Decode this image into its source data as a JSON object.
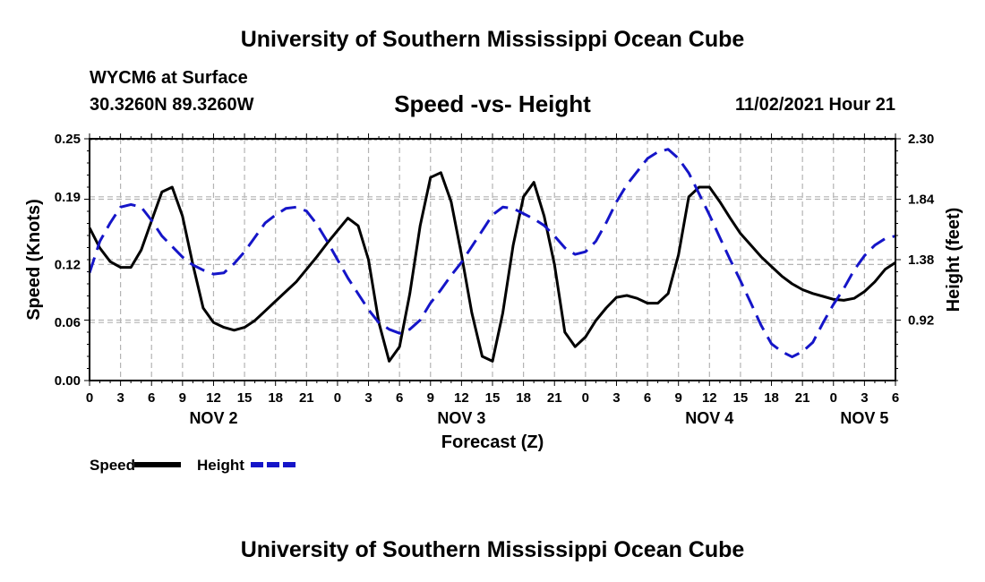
{
  "header": {
    "title": "University of Southern Mississippi Ocean Cube",
    "station": "WYCM6 at Surface",
    "coords": "30.3260N  89.3260W",
    "subtitle": "Speed -vs- Height",
    "datetime": "11/02/2021 Hour 21",
    "footer_title": "University of Southern Mississippi Ocean Cube"
  },
  "colors": {
    "speed": "#000000",
    "height": "#1515c8",
    "grid": "#b4b4b4"
  },
  "chart_data": {
    "type": "line",
    "title": "Speed -vs- Height",
    "xlabel": "Forecast (Z)",
    "ylabel": "Speed (Knots)",
    "y2label": "Height (feet)",
    "x_range_hours": [
      0,
      78
    ],
    "ylim": [
      0,
      0.25
    ],
    "y2lim": [
      0.46,
      2.3
    ],
    "yticks": [
      "0.00",
      "0.06",
      "0.12",
      "0.19",
      "0.25"
    ],
    "y2ticks": [
      "0.92",
      "1.38",
      "1.84",
      "2.30"
    ],
    "xtick_labels": [
      "0",
      "3",
      "6",
      "9",
      "12",
      "15",
      "18",
      "21",
      "0",
      "3",
      "6",
      "9",
      "12",
      "15",
      "18",
      "21",
      "0",
      "3",
      "6",
      "9",
      "12",
      "15",
      "18",
      "21",
      "0",
      "3",
      "6"
    ],
    "day_labels": [
      {
        "label": "NOV 2",
        "hour": 12
      },
      {
        "label": "NOV 3",
        "hour": 36
      },
      {
        "label": "NOV 4",
        "hour": 60
      },
      {
        "label": "NOV 5",
        "hour": 75
      }
    ],
    "legend": [
      {
        "name": "Speed",
        "style": "solid"
      },
      {
        "name": "Height",
        "style": "dashed"
      }
    ],
    "series": [
      {
        "name": "Speed",
        "axis": "left",
        "x": [
          0,
          1,
          2,
          3,
          4,
          5,
          6,
          7,
          8,
          9,
          10,
          11,
          12,
          13,
          14,
          15,
          16,
          17,
          18,
          19,
          20,
          21,
          22,
          23,
          24,
          25,
          26,
          27,
          28,
          29,
          30,
          31,
          32,
          33,
          34,
          35,
          36,
          37,
          38,
          39,
          40,
          41,
          42,
          43,
          44,
          45,
          46,
          47,
          48,
          49,
          50,
          51,
          52,
          53,
          54,
          55,
          56,
          57,
          58,
          59,
          60,
          61,
          62,
          63,
          64,
          65,
          66,
          67,
          68,
          69,
          70,
          71,
          72,
          73,
          74,
          75,
          76,
          77,
          78
        ],
        "values": [
          0.158,
          0.137,
          0.123,
          0.117,
          0.117,
          0.135,
          0.165,
          0.195,
          0.2,
          0.17,
          0.12,
          0.075,
          0.06,
          0.055,
          0.052,
          0.055,
          0.062,
          0.072,
          0.082,
          0.092,
          0.102,
          0.115,
          0.128,
          0.142,
          0.155,
          0.168,
          0.16,
          0.125,
          0.06,
          0.02,
          0.035,
          0.09,
          0.16,
          0.21,
          0.215,
          0.185,
          0.13,
          0.07,
          0.025,
          0.02,
          0.07,
          0.14,
          0.19,
          0.205,
          0.17,
          0.12,
          0.05,
          0.035,
          0.045,
          0.062,
          0.075,
          0.086,
          0.088,
          0.085,
          0.08,
          0.08,
          0.09,
          0.13,
          0.19,
          0.2,
          0.2,
          0.185,
          0.168,
          0.152,
          0.14,
          0.128,
          0.118,
          0.108,
          0.1,
          0.094,
          0.09,
          0.087,
          0.084,
          0.083,
          0.085,
          0.092,
          0.102,
          0.115,
          0.122
        ]
      },
      {
        "name": "Height",
        "axis": "right",
        "x": [
          0,
          1,
          2,
          3,
          4,
          5,
          6,
          7,
          8,
          9,
          10,
          11,
          12,
          13,
          14,
          15,
          16,
          17,
          18,
          19,
          20,
          21,
          22,
          23,
          24,
          25,
          26,
          27,
          28,
          29,
          30,
          31,
          32,
          33,
          34,
          35,
          36,
          37,
          38,
          39,
          40,
          41,
          42,
          43,
          44,
          45,
          46,
          47,
          48,
          49,
          50,
          51,
          52,
          53,
          54,
          55,
          56,
          57,
          58,
          59,
          60,
          61,
          62,
          63,
          64,
          65,
          66,
          67,
          68,
          69,
          70,
          71,
          72,
          73,
          74,
          75,
          76,
          77,
          78
        ],
        "values": [
          1.28,
          1.52,
          1.66,
          1.78,
          1.8,
          1.78,
          1.68,
          1.56,
          1.48,
          1.4,
          1.34,
          1.3,
          1.27,
          1.28,
          1.35,
          1.44,
          1.55,
          1.66,
          1.72,
          1.77,
          1.78,
          1.75,
          1.65,
          1.52,
          1.38,
          1.24,
          1.12,
          1.0,
          0.9,
          0.85,
          0.82,
          0.85,
          0.92,
          1.05,
          1.15,
          1.26,
          1.36,
          1.48,
          1.6,
          1.72,
          1.78,
          1.77,
          1.73,
          1.69,
          1.64,
          1.56,
          1.47,
          1.42,
          1.44,
          1.52,
          1.66,
          1.82,
          1.95,
          2.05,
          2.15,
          2.2,
          2.22,
          2.15,
          2.04,
          1.88,
          1.72,
          1.55,
          1.38,
          1.22,
          1.05,
          0.88,
          0.74,
          0.68,
          0.64,
          0.68,
          0.75,
          0.9,
          1.04,
          1.16,
          1.3,
          1.41,
          1.49,
          1.54,
          1.56
        ]
      }
    ]
  }
}
